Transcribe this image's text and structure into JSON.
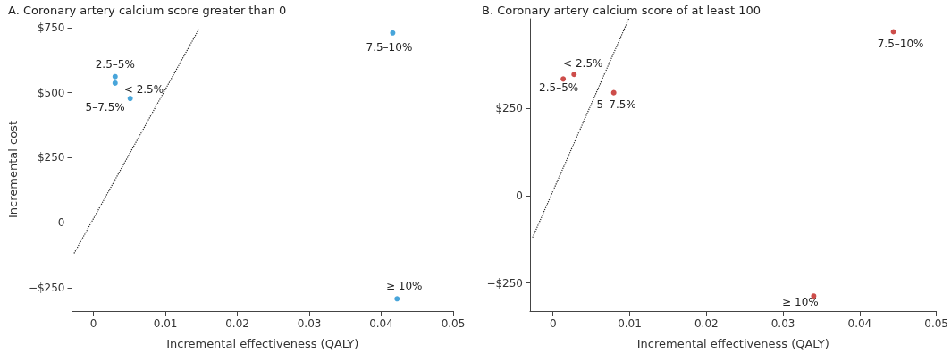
{
  "chart_data": [
    {
      "type": "scatter",
      "title": "A. Coronary artery calcium score greater than 0",
      "xlabel": "Incremental effectiveness (QALY)",
      "ylabel": "Incremental cost",
      "xlim": [
        -0.003,
        0.05
      ],
      "ylim": [
        -340,
        750
      ],
      "xticks": [
        0,
        0.01,
        0.02,
        0.03,
        0.04,
        0.05
      ],
      "yticks": [
        {
          "value": -250,
          "label": "−$250"
        },
        0,
        {
          "value": 250,
          "label": "$250"
        },
        {
          "value": 500,
          "label": "$500"
        },
        {
          "value": 750,
          "label": "$750"
        }
      ],
      "grid": false,
      "series": [
        {
          "marker": "circle",
          "color": "#1a8fd1",
          "x": [
            0.003,
            0.003,
            0.0051,
            0.0416,
            0.0422
          ],
          "values": [
            562,
            537,
            478,
            730,
            -293
          ]
        },
        {
          "type": "line",
          "color": "#222222",
          "line_style": "dotted",
          "x": [
            -0.0027,
            0.0147
          ],
          "values": [
            -118,
            747
          ]
        }
      ],
      "annotations": [
        {
          "text": "2.5–5%",
          "x": 0.003,
          "y": 562
        },
        {
          "text": "< 2.5%",
          "x": 0.003,
          "y": 537
        },
        {
          "text": "5–7.5%",
          "x": 0.0051,
          "y": 478
        },
        {
          "text": "7.5–10%",
          "x": 0.0416,
          "y": 730
        },
        {
          "text": "≥ 10%",
          "x": 0.0422,
          "y": -293
        }
      ]
    },
    {
      "type": "scatter",
      "title": "B. Coronary artery calcium score of at least 100",
      "xlabel": "Incremental effectiveness (QALY)",
      "xlim": [
        -0.003,
        0.05
      ],
      "ylim": [
        -330,
        505
      ],
      "xticks": [
        0,
        0.01,
        0.02,
        0.03,
        0.04,
        0.05
      ],
      "yticks": [
        {
          "value": -250,
          "label": "−$250"
        },
        0,
        {
          "value": 250,
          "label": "$250"
        }
      ],
      "grid": false,
      "series": [
        {
          "marker": "circle",
          "color": "#c0201d",
          "x": [
            0.0444,
            0.00274,
            0.00133,
            0.00792,
            0.034
          ],
          "values": [
            468,
            346,
            333,
            294,
            -287
          ]
        },
        {
          "type": "line",
          "color": "#222222",
          "line_style": "dotted",
          "x": [
            -0.00267,
            0.00988
          ],
          "values": [
            -120,
            505
          ]
        }
      ],
      "annotations": [
        {
          "text": "7.5–10%",
          "x": 0.0444,
          "y": 468
        },
        {
          "text": "< 2.5%",
          "x": 0.00274,
          "y": 346
        },
        {
          "text": "2.5–5%",
          "x": 0.00133,
          "y": 333
        },
        {
          "text": "5–7.5%",
          "x": 0.00792,
          "y": 294
        },
        {
          "text": "≥ 10%",
          "x": 0.034,
          "y": -287
        }
      ]
    }
  ]
}
